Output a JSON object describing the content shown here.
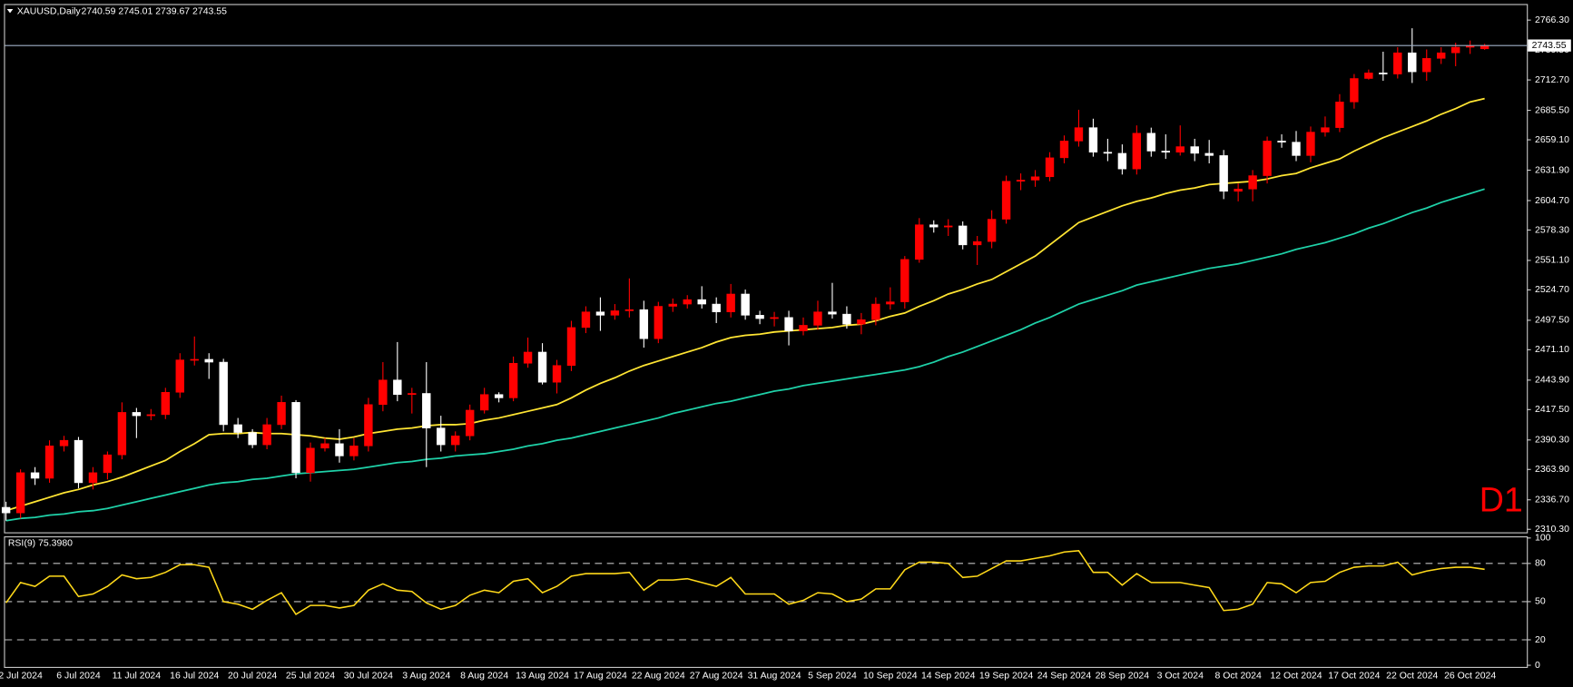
{
  "chart_data": [
    {
      "type": "candlestick",
      "title": "XAUUSD,Daily",
      "subtitle": "2740.59 2745.01 2739.67 2743.55",
      "annotation": "D1",
      "annotation_color": "#ff0000",
      "up_color": "#ff0000",
      "down_color": "#ffffff",
      "current_price": 2743.55,
      "current_price_color": "#9fb0c8",
      "categories": [
        null,
        "2 Jul 2024",
        null,
        null,
        null,
        "6 Jul 2024",
        null,
        null,
        null,
        "11 Jul 2024",
        null,
        null,
        null,
        "16 Jul 2024",
        null,
        null,
        null,
        "20 Jul 2024",
        null,
        null,
        null,
        "25 Jul 2024",
        null,
        null,
        null,
        "30 Jul 2024",
        null,
        null,
        null,
        "3 Aug 2024",
        null,
        null,
        null,
        "8 Aug 2024",
        null,
        null,
        null,
        "13 Aug 2024",
        null,
        null,
        null,
        "17 Aug 2024",
        null,
        null,
        null,
        "22 Aug 2024",
        null,
        null,
        null,
        "27 Aug 2024",
        null,
        null,
        null,
        "31 Aug 2024",
        null,
        null,
        null,
        "5 Sep 2024",
        null,
        null,
        null,
        "10 Sep 2024",
        null,
        null,
        null,
        "14 Sep 2024",
        null,
        null,
        null,
        "19 Sep 2024",
        null,
        null,
        null,
        "24 Sep 2024",
        null,
        null,
        null,
        "28 Sep 2024",
        null,
        null,
        null,
        "3 Oct 2024",
        null,
        null,
        null,
        "8 Oct 2024",
        null,
        null,
        null,
        "12 Oct 2024",
        null,
        null,
        null,
        "17 Oct 2024",
        null,
        null,
        null,
        "22 Oct 2024",
        null,
        null,
        null,
        "26 Oct 2024",
        null
      ],
      "open": [
        2330,
        2325,
        2361,
        2356,
        2385,
        2390,
        2352,
        2361,
        2377,
        2415,
        2412,
        2413,
        2433,
        2462,
        2462.5,
        2460,
        2404,
        2397,
        2386,
        2404,
        2424,
        2361,
        2383,
        2387,
        2376,
        2385,
        2422,
        2444,
        2431,
        2432,
        2401,
        2386,
        2394,
        2417,
        2431,
        2428,
        2459,
        2469,
        2442,
        2457,
        2491,
        2505,
        2502,
        2506,
        2507,
        2481,
        2510,
        2512,
        2516,
        2512,
        2505,
        2521,
        2502,
        2499,
        2500,
        2488,
        2493,
        2505,
        2503,
        2494,
        2498,
        2512,
        2514,
        2552,
        2583,
        2581,
        2582,
        2565,
        2568,
        2588,
        2622,
        2623,
        2626,
        2643,
        2658,
        2670,
        2648,
        2647,
        2633,
        2665,
        2649,
        2648,
        2653,
        2647,
        2645,
        2613,
        2615,
        2627,
        2658,
        2657,
        2645,
        2666,
        2670,
        2693,
        2714,
        2719,
        2718,
        2737,
        2720,
        2732,
        2737,
        2742,
        2740.59
      ],
      "high": [
        2335,
        2364,
        2366,
        2390,
        2394,
        2393,
        2366,
        2380,
        2424,
        2419,
        2418,
        2437,
        2468,
        2483,
        2468,
        2463,
        2410,
        2400,
        2410,
        2430,
        2426,
        2388,
        2392,
        2400,
        2392,
        2428,
        2460,
        2478,
        2437,
        2460,
        2412,
        2398,
        2422,
        2437,
        2433,
        2465,
        2482,
        2477,
        2462,
        2497,
        2510,
        2518,
        2512,
        2535,
        2515,
        2514,
        2517,
        2520,
        2528,
        2518,
        2530,
        2525,
        2506,
        2505,
        2506,
        2500,
        2515,
        2531,
        2510,
        2504,
        2518,
        2527,
        2555,
        2589,
        2587,
        2588,
        2586,
        2573,
        2596,
        2627,
        2629,
        2632,
        2648,
        2663,
        2686,
        2678,
        2660,
        2655,
        2672,
        2670,
        2664,
        2672,
        2660,
        2659,
        2650,
        2620,
        2632,
        2662,
        2664,
        2667,
        2671,
        2680,
        2700,
        2718,
        2722,
        2738,
        2742,
        2759,
        2740,
        2742,
        2746,
        2748,
        2745.01
      ],
      "low": [
        2318,
        2320,
        2350,
        2352,
        2380,
        2347,
        2346,
        2355,
        2373,
        2392,
        2408,
        2409,
        2428,
        2457,
        2445,
        2398,
        2392,
        2383,
        2382,
        2400,
        2356,
        2353,
        2380,
        2370,
        2372,
        2380,
        2416,
        2425,
        2414,
        2366,
        2380,
        2380,
        2390,
        2414,
        2424,
        2425,
        2455,
        2440,
        2432,
        2452,
        2486,
        2488,
        2498,
        2500,
        2473,
        2477,
        2505,
        2508,
        2508,
        2495,
        2500,
        2498,
        2494,
        2492,
        2475,
        2484,
        2489,
        2499,
        2490,
        2485,
        2493,
        2507,
        2508,
        2549,
        2576,
        2573,
        2561,
        2547,
        2562,
        2584,
        2614,
        2617,
        2622,
        2638,
        2653,
        2644,
        2640,
        2628,
        2628,
        2644,
        2642,
        2645,
        2640,
        2638,
        2606,
        2604,
        2604,
        2620,
        2652,
        2640,
        2639,
        2662,
        2666,
        2687,
        2713,
        2712,
        2714,
        2710,
        2712,
        2727,
        2725,
        2736,
        2739.67
      ],
      "close": [
        2325,
        2361,
        2356,
        2385,
        2390,
        2352,
        2361,
        2377,
        2415,
        2412,
        2413,
        2433,
        2462,
        2462.5,
        2460,
        2404,
        2397,
        2386,
        2404,
        2424,
        2361,
        2383,
        2387,
        2376,
        2385,
        2422,
        2444,
        2431,
        2432,
        2401,
        2386,
        2394,
        2417,
        2431,
        2428,
        2459,
        2469,
        2442,
        2457,
        2491,
        2505,
        2502,
        2506,
        2507,
        2481,
        2510,
        2512,
        2516,
        2512,
        2505,
        2521,
        2502,
        2499,
        2500,
        2488,
        2493,
        2505,
        2503,
        2494,
        2498,
        2512,
        2514,
        2552,
        2583,
        2581,
        2582,
        2565,
        2568,
        2588,
        2622,
        2623,
        2626,
        2643,
        2658,
        2670,
        2648,
        2647,
        2633,
        2665,
        2649,
        2648,
        2653,
        2647,
        2645,
        2613,
        2615,
        2627,
        2658,
        2657,
        2645,
        2666,
        2670,
        2693,
        2714,
        2719,
        2718,
        2737,
        2720,
        2732,
        2737,
        2742,
        2743,
        2743.55
      ],
      "series": [
        {
          "color": "#ffe533",
          "values": [
            2327,
            2331,
            2335,
            2339,
            2343,
            2346,
            2350,
            2353,
            2357,
            2362,
            2367,
            2372,
            2380,
            2387,
            2395,
            2396,
            2396,
            2397,
            2396,
            2396,
            2395,
            2394,
            2392,
            2391,
            2393,
            2396,
            2398,
            2400,
            2401,
            2403,
            2404,
            2404,
            2405,
            2408,
            2410,
            2413,
            2416,
            2419,
            2422,
            2428,
            2435,
            2441,
            2446,
            2452,
            2457,
            2461,
            2465,
            2469,
            2473,
            2478,
            2482,
            2484,
            2485,
            2487,
            2488,
            2489,
            2490,
            2491,
            2493,
            2494,
            2497,
            2501,
            2504,
            2510,
            2515,
            2521,
            2525,
            2530,
            2534,
            2541,
            2548,
            2555,
            2565,
            2575,
            2585,
            2590,
            2595,
            2600,
            2604,
            2607,
            2611,
            2614,
            2616,
            2619,
            2620,
            2621,
            2622,
            2624,
            2627,
            2629,
            2634,
            2638,
            2642,
            2649,
            2655,
            2661,
            2666,
            2671,
            2676,
            2682,
            2687,
            2693,
            2696
          ]
        },
        {
          "color": "#1fd1a8",
          "values": [
            2318,
            2320,
            2321,
            2323,
            2324,
            2326,
            2327,
            2329,
            2332,
            2335,
            2338,
            2341,
            2344,
            2347,
            2350,
            2352,
            2353,
            2355,
            2356,
            2358,
            2360,
            2361,
            2362,
            2363,
            2364,
            2366,
            2368,
            2370,
            2371,
            2373,
            2374,
            2376,
            2377,
            2378,
            2380,
            2382,
            2385,
            2387,
            2390,
            2392,
            2395,
            2398,
            2401,
            2404,
            2407,
            2410,
            2414,
            2417,
            2420,
            2423,
            2425,
            2428,
            2431,
            2434,
            2436,
            2439,
            2441,
            2443,
            2445,
            2447,
            2449,
            2451,
            2453,
            2456,
            2460,
            2465,
            2469,
            2474,
            2479,
            2484,
            2489,
            2495,
            2500,
            2506,
            2512,
            2516,
            2520,
            2524,
            2529,
            2532,
            2535,
            2538,
            2541,
            2544,
            2546,
            2548,
            2551,
            2554,
            2557,
            2561,
            2564,
            2567,
            2571,
            2575,
            2580,
            2584,
            2589,
            2594,
            2598,
            2603,
            2607,
            2611,
            2615
          ]
        }
      ],
      "ylim": [
        2307.6,
        2780.7
      ],
      "yticks": [
        {
          "value": 2310.3,
          "label": "2310.30"
        },
        {
          "value": 2336.7,
          "label": "2336.70"
        },
        {
          "value": 2363.9,
          "label": "2363.90"
        },
        {
          "value": 2390.3,
          "label": "2390.30"
        },
        {
          "value": 2417.5,
          "label": "2417.50"
        },
        {
          "value": 2443.9,
          "label": "2443.90"
        },
        {
          "value": 2471.1,
          "label": "2471.10"
        },
        {
          "value": 2497.5,
          "label": "2497.50"
        },
        {
          "value": 2524.7,
          "label": "2524.70"
        },
        {
          "value": 2551.1,
          "label": "2551.10"
        },
        {
          "value": 2578.3,
          "label": "2578.30"
        },
        {
          "value": 2604.7,
          "label": "2604.70"
        },
        {
          "value": 2631.9,
          "label": "2631.90"
        },
        {
          "value": 2659.1,
          "label": "2659.10"
        },
        {
          "value": 2685.5,
          "label": "2685.50"
        },
        {
          "value": 2712.7,
          "label": "2712.70"
        },
        {
          "value": 2739.5,
          "label": "2739.50"
        },
        {
          "value": 2766.3,
          "label": "2766.30"
        }
      ]
    },
    {
      "type": "line",
      "title": "RSI(9) 75.3980",
      "color": "#ffd91a",
      "level_color": "#c0c0c0",
      "levels": [
        20,
        50,
        80
      ],
      "values": [
        49,
        65,
        62,
        70,
        70,
        54,
        56,
        62,
        71,
        68,
        69,
        73,
        79,
        79,
        77,
        50,
        48,
        44,
        51,
        57,
        40,
        47,
        47,
        45,
        47,
        59,
        64,
        59,
        58,
        49,
        44,
        47,
        55,
        59,
        57,
        66,
        68,
        57,
        62,
        70,
        72,
        72,
        72,
        73,
        59,
        67,
        67,
        68,
        65,
        62,
        69,
        56,
        56,
        56,
        48,
        51,
        57,
        56,
        50,
        52,
        60,
        60,
        75,
        81,
        81,
        80,
        69,
        70,
        76,
        82,
        82,
        84,
        86,
        89,
        90,
        73,
        73,
        63,
        72,
        65,
        65,
        65,
        63,
        61,
        43,
        44,
        48,
        65,
        64,
        57,
        65,
        66,
        73,
        77,
        78,
        78,
        81,
        71,
        74,
        76,
        77,
        77,
        75.398
      ],
      "ylim": [
        -1.3,
        101.3
      ],
      "yticks": [
        0,
        20,
        50,
        80,
        100
      ]
    }
  ]
}
